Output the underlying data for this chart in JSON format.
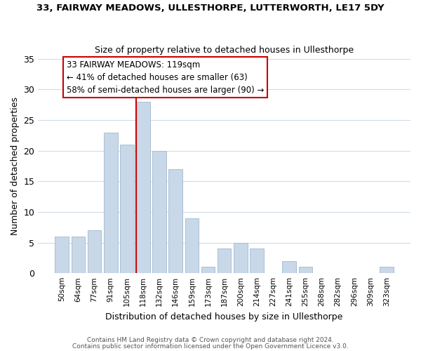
{
  "title_line1": "33, FAIRWAY MEADOWS, ULLESTHORPE, LUTTERWORTH, LE17 5DY",
  "title_line2": "Size of property relative to detached houses in Ullesthorpe",
  "xlabel": "Distribution of detached houses by size in Ullesthorpe",
  "ylabel": "Number of detached properties",
  "bar_labels": [
    "50sqm",
    "64sqm",
    "77sqm",
    "91sqm",
    "105sqm",
    "118sqm",
    "132sqm",
    "146sqm",
    "159sqm",
    "173sqm",
    "187sqm",
    "200sqm",
    "214sqm",
    "227sqm",
    "241sqm",
    "255sqm",
    "268sqm",
    "282sqm",
    "296sqm",
    "309sqm",
    "323sqm"
  ],
  "bar_values": [
    6,
    6,
    7,
    23,
    21,
    28,
    20,
    17,
    9,
    1,
    4,
    5,
    4,
    0,
    2,
    1,
    0,
    0,
    0,
    0,
    1
  ],
  "bar_color": "#c8d8e8",
  "bar_edge_color": "#a8c0d4",
  "vline_color": "#cc0000",
  "vline_bar_index": 5,
  "ylim": [
    0,
    35
  ],
  "yticks": [
    0,
    5,
    10,
    15,
    20,
    25,
    30,
    35
  ],
  "annotation_title": "33 FAIRWAY MEADOWS: 119sqm",
  "annotation_line1": "← 41% of detached houses are smaller (63)",
  "annotation_line2": "58% of semi-detached houses are larger (90) →",
  "footer_line1": "Contains HM Land Registry data © Crown copyright and database right 2024.",
  "footer_line2": "Contains public sector information licensed under the Open Government Licence v3.0.",
  "bg_color": "#ffffff",
  "grid_color": "#d0dce8"
}
